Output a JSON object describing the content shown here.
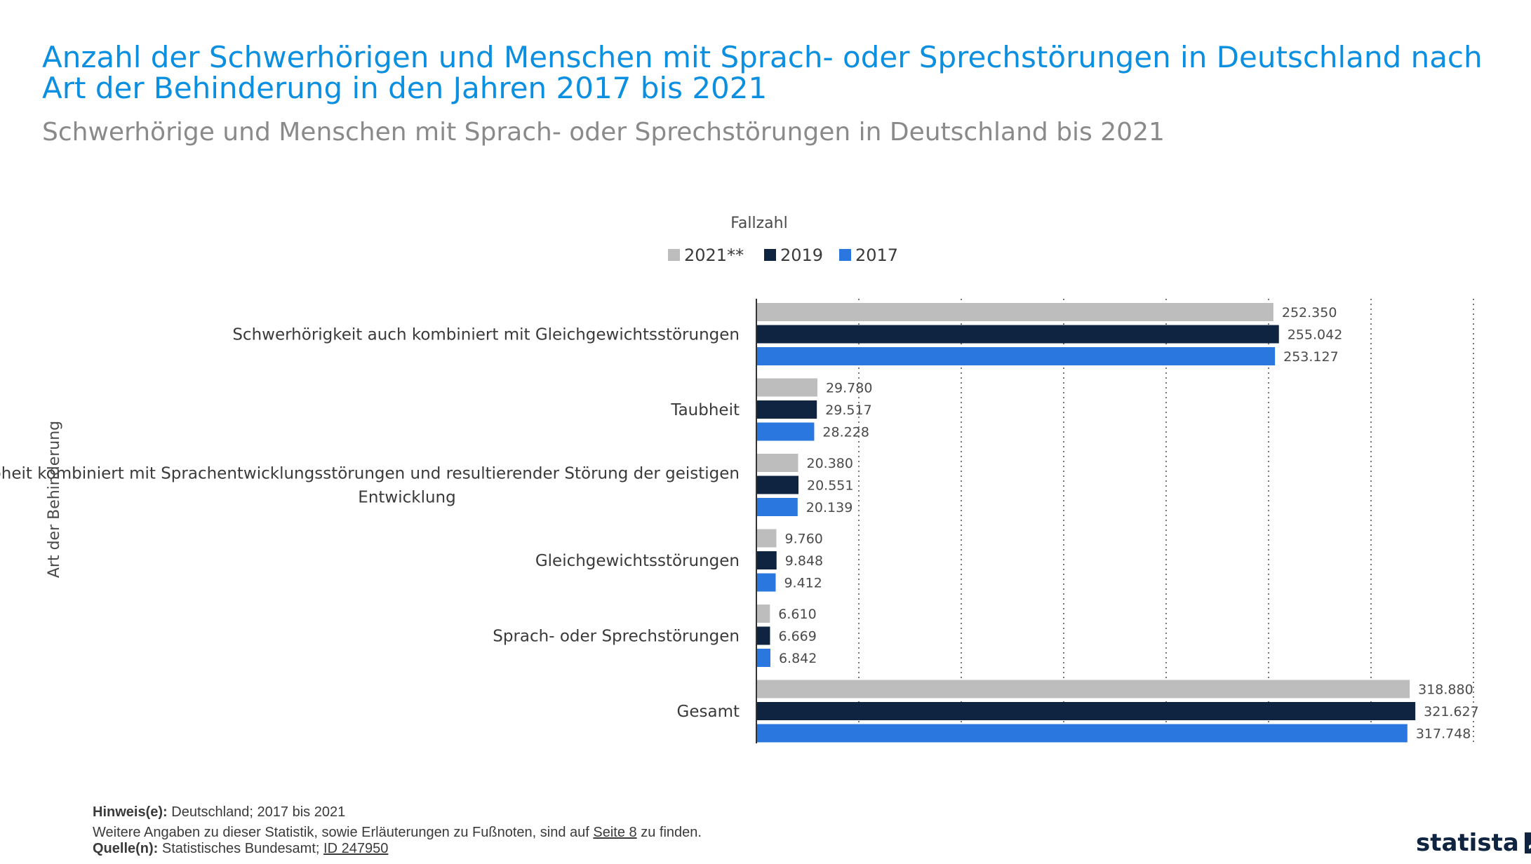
{
  "header": {
    "title": "Anzahl der Schwerhörigen und Menschen mit Sprach- oder Sprechstörungen in Deutschland nach Art der Behinderung in den Jahren 2017 bis 2021",
    "subtitle": "Schwerhörige und Menschen mit Sprach- oder Sprechstörungen in Deutschland bis 2021"
  },
  "chart_data": {
    "type": "bar",
    "orientation": "horizontal",
    "xlabel": "Fallzahl",
    "ylabel": "Art der Behinderung",
    "xlim": [
      0,
      350000
    ],
    "grid": true,
    "legend_position": "top",
    "categories": [
      "Schwerhörigkeit auch kombiniert mit Gleichgewichtsstörungen",
      "Taubheit",
      "Taubheit kombiniert mit Sprachentwicklungsstörungen und resultierender Störung der geistigen Entwicklung",
      "Gleichgewichtsstörungen",
      "Sprach- oder Sprechstörungen",
      "Gesamt"
    ],
    "series": [
      {
        "name": "2021**",
        "color": "#bdbdbd",
        "values": [
          252350,
          29780,
          20380,
          9760,
          6610,
          318880
        ],
        "labels": [
          "252.350",
          "29.780",
          "20.380",
          "9.760",
          "6.610",
          "318.880"
        ]
      },
      {
        "name": "2019",
        "color": "#0f2440",
        "values": [
          255042,
          29517,
          20551,
          9848,
          6669,
          321627
        ],
        "labels": [
          "255.042",
          "29.517",
          "20.551",
          "9.848",
          "6.669",
          "321.627"
        ]
      },
      {
        "name": "2017",
        "color": "#2a78df",
        "values": [
          253127,
          28228,
          20139,
          9412,
          6842,
          317748
        ],
        "labels": [
          "253.127",
          "28.228",
          "20.139",
          "9.412",
          "6.842",
          "317.748"
        ]
      }
    ]
  },
  "footer": {
    "note_label": "Hinweis(e):",
    "note_text": "Deutschland; 2017 bis 2021",
    "info_text": "Weitere Angaben zu dieser Statistik, sowie Erläuterungen zu Fußnoten, sind auf",
    "info_link": "Seite 8",
    "info_suffix": "zu finden.",
    "source_label": "Quelle(n):",
    "source_text": "Statistisches Bundesamt;",
    "source_id": "ID 247950"
  },
  "brand": {
    "name": "statista"
  }
}
